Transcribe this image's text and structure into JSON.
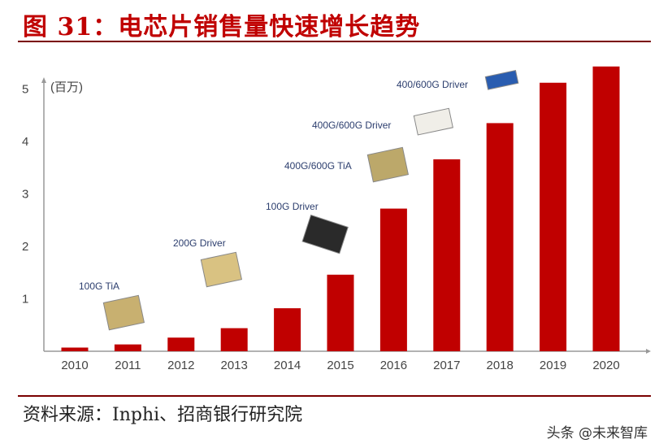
{
  "title": "图 31：电芯片销售量快速增长趋势",
  "source": "资料来源：Inphi、招商银行研究院",
  "watermark": "头条 @未来智库",
  "chart_data": {
    "type": "bar",
    "ylabel": "(百万)",
    "categories": [
      "2010",
      "2011",
      "2012",
      "2013",
      "2014",
      "2015",
      "2016",
      "2017",
      "2018",
      "2019",
      "2020"
    ],
    "values": [
      0.07,
      0.13,
      0.26,
      0.44,
      0.82,
      1.46,
      2.72,
      3.66,
      4.35,
      5.12,
      5.43
    ],
    "yticks": [
      1,
      2,
      3,
      4,
      5
    ],
    "ylim": [
      0,
      5.6
    ],
    "bar_color": "#c00000",
    "grid": false,
    "annotations": [
      {
        "text": "100G TiA",
        "year": "2011"
      },
      {
        "text": "200G Driver",
        "year": "2013"
      },
      {
        "text": "100G Driver",
        "year": "2015"
      },
      {
        "text": "400G/600G TiA",
        "year": "2016"
      },
      {
        "text": "400G/600G Driver",
        "year": "2017"
      },
      {
        "text": "400/600G Driver",
        "year": "2018"
      }
    ]
  }
}
